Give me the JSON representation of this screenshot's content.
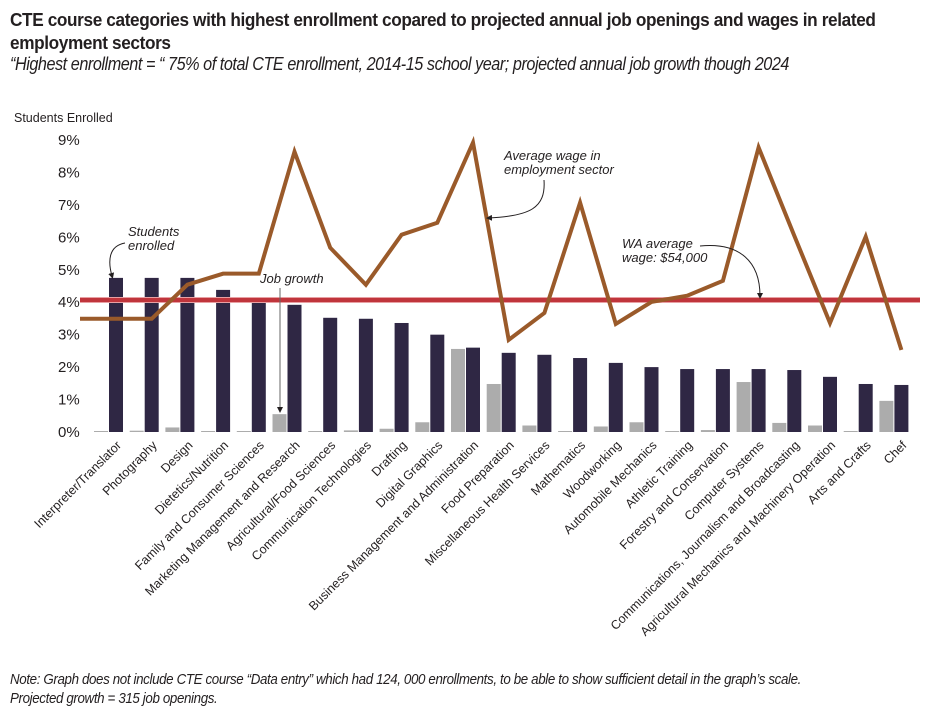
{
  "header": {
    "title": "CTE course categories with highest enrollment copared to projected annual job openings and wages in related employment sectors",
    "subtitle": "“Highest enrollment = “ 75% of total CTE enrollment, 2014-15 school year; projected annual job growth though 2024"
  },
  "footer": {
    "note_line1": "Note: Graph does not include CTE course “Data entry” which had 124, 000 enrollments, to be able to show sufficient detail in the graph’s scale.",
    "note_line2": "Projected growth = 315 job openings."
  },
  "colors": {
    "students_enrolled": "#2f2744",
    "job_growth": "#acacac",
    "average_wage": "#9a5a2a",
    "wa_average_wage": "#c0353c"
  },
  "chart_data": {
    "type": "bar",
    "title": "CTE course categories with highest enrollment copared to projected annual job openings and wages in related employment sectors",
    "ylabel": "Students Enrolled",
    "xlabel": "",
    "ylim": [
      0,
      9
    ],
    "yticks": [
      "0%",
      "1%",
      "2%",
      "3%",
      "4%",
      "5%",
      "6%",
      "7%",
      "8%",
      "9%"
    ],
    "grid": false,
    "categories": [
      "Interpreter/Translator",
      "Photography",
      "Design",
      "Dietetics/Nutrition",
      "Family and Consumer Sciences",
      "Marketing Management and Research",
      "Agricultural/Food Sciences",
      "Communication Technologies",
      "Drafting",
      "Digital Graphics",
      "Business Management and Administration",
      "Food Preparation",
      "Miscellaneous Health Services",
      "Mathematics",
      "Woodworking",
      "Automobile Mechanics",
      "Athletic Training",
      "Forestry and Conservation",
      "Computer Systems",
      "Communications, Journalism and Broadcasting",
      "Agricultural Mechanics and Machinery Operation",
      "Arts and Crafts",
      "Chef"
    ],
    "series": [
      {
        "name": "Job growth",
        "type": "bar",
        "values": [
          0.03,
          0.04,
          0.14,
          0.02,
          0.01,
          0.55,
          0.03,
          0.05,
          0.1,
          0.3,
          2.56,
          1.48,
          0.2,
          0.03,
          0.17,
          0.3,
          0.03,
          0.06,
          1.54,
          0.28,
          0.2,
          0.02,
          0.96
        ]
      },
      {
        "name": "Students enrolled",
        "type": "bar",
        "values": [
          4.75,
          4.75,
          4.75,
          4.38,
          4.07,
          3.92,
          3.52,
          3.49,
          3.36,
          3.0,
          2.6,
          2.44,
          2.38,
          2.28,
          2.13,
          2.0,
          1.94,
          1.94,
          1.94,
          1.91,
          1.7,
          1.48,
          1.45
        ]
      },
      {
        "name": "Average wage in employment sector",
        "type": "line",
        "values": [
          3.49,
          3.49,
          4.54,
          4.88,
          4.88,
          8.64,
          5.68,
          4.54,
          6.08,
          6.45,
          8.92,
          2.84,
          3.67,
          7.07,
          3.33,
          4.01,
          4.2,
          4.66,
          8.77,
          6.05,
          3.36,
          6.02,
          2.53
        ]
      },
      {
        "name": "WA average wage: $54,000",
        "type": "hline",
        "value": 4.07
      }
    ],
    "annotations": [
      {
        "text_line1": "Students",
        "text_line2": "enrolled",
        "target": "Interpreter/Translator"
      },
      {
        "text_line1": "Job growth",
        "target": "Marketing Management and Research"
      },
      {
        "text_line1": "Average wage in",
        "text_line2": "employment sector",
        "target": "Business Management and Administration"
      },
      {
        "text_line1": "WA average",
        "text_line2": "wage: $54,000",
        "target": "WA average wage line"
      }
    ]
  }
}
